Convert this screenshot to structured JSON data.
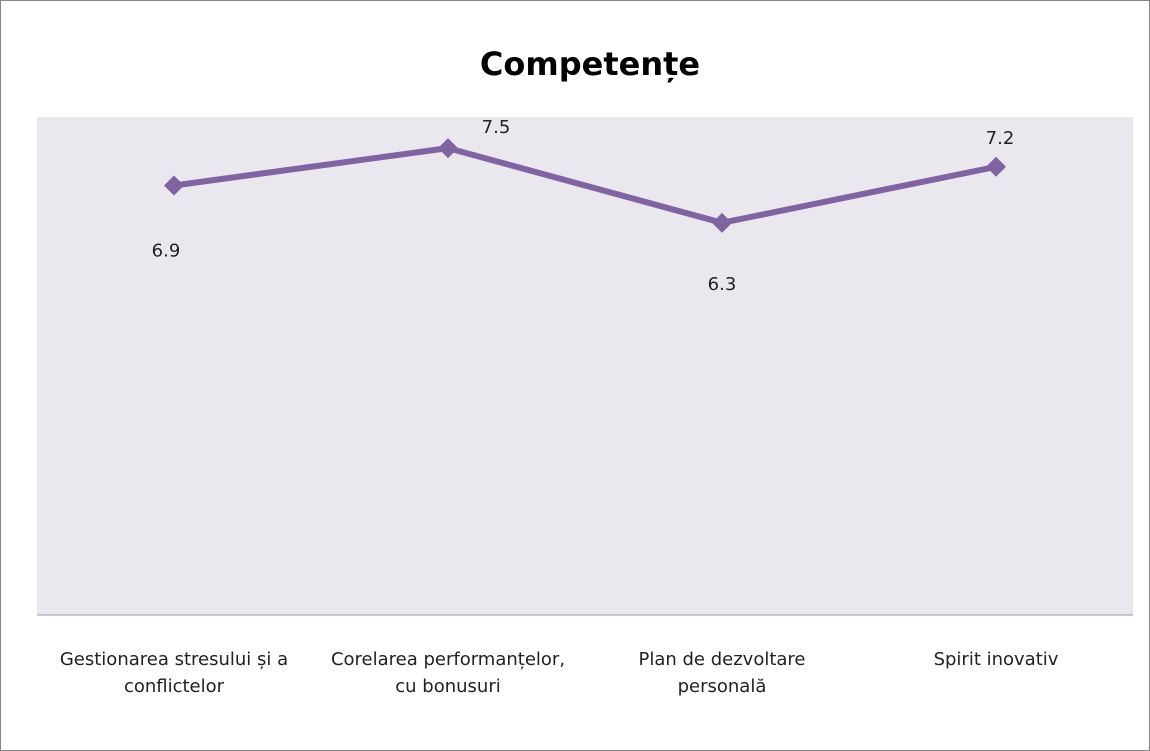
{
  "chart_data": {
    "type": "line",
    "title": "Competențe",
    "categories": [
      "Gestionarea stresului și a conflictelor",
      "Corelarea performanțelor, cu bonusuri",
      "Plan de dezvoltare personală",
      "Spirit inovativ"
    ],
    "series": [
      {
        "name": "Competențe",
        "color": "#8064a2",
        "values": [
          6.9,
          7.5,
          6.3,
          7.2
        ]
      }
    ],
    "ylim": [
      0,
      8
    ],
    "plot_background": "#ebe7ef"
  }
}
